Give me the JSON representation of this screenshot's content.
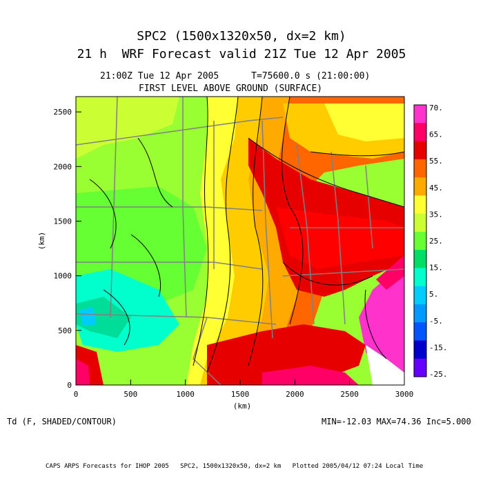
{
  "title": {
    "line1": "SPC2 (1500x1320x50, dx=2 km)",
    "line2": "21 h  WRF Forecast valid 21Z Tue 12 Apr 2005"
  },
  "subtitle": {
    "time": "21:00Z Tue 12 Apr 2005      T=75600.0 s (21:00:00)",
    "level": "FIRST LEVEL ABOVE GROUND (SURFACE)"
  },
  "axes": {
    "x_label": "(km)",
    "y_label": "(km)",
    "x_range": [
      0,
      3000
    ],
    "y_range": [
      0,
      2640
    ],
    "x_ticks": [
      "0",
      "500",
      "1000",
      "1500",
      "2000",
      "2500",
      "3000"
    ],
    "y_ticks": [
      "0",
      "500",
      "1000",
      "1500",
      "2000",
      "2500"
    ]
  },
  "colorbar": {
    "labels": [
      "70.",
      "65.",
      "55.",
      "45.",
      "35.",
      "25.",
      "15.",
      "5.",
      "-5.",
      "-15.",
      "-25."
    ],
    "colors": [
      "#ff33cc",
      "#ff0066",
      "#e60000",
      "#ff6600",
      "#ffaa00",
      "#ffff33",
      "#ccff33",
      "#66ff33",
      "#00dd66",
      "#00ffcc",
      "#00ccff",
      "#0099ff",
      "#0055ff",
      "#0000cc",
      "#6600ff"
    ]
  },
  "field": {
    "variable": "Td (F, SHADED/CONTOUR)",
    "stats": "MIN=-12.03 MAX=74.36 Inc=5.000"
  },
  "footer": "CAPS ARPS Forecasts for IHOP 2005   SPC2, 1500x1320x50, dx=2 km   Plotted 2005/04/12 07:24 Local Time"
}
